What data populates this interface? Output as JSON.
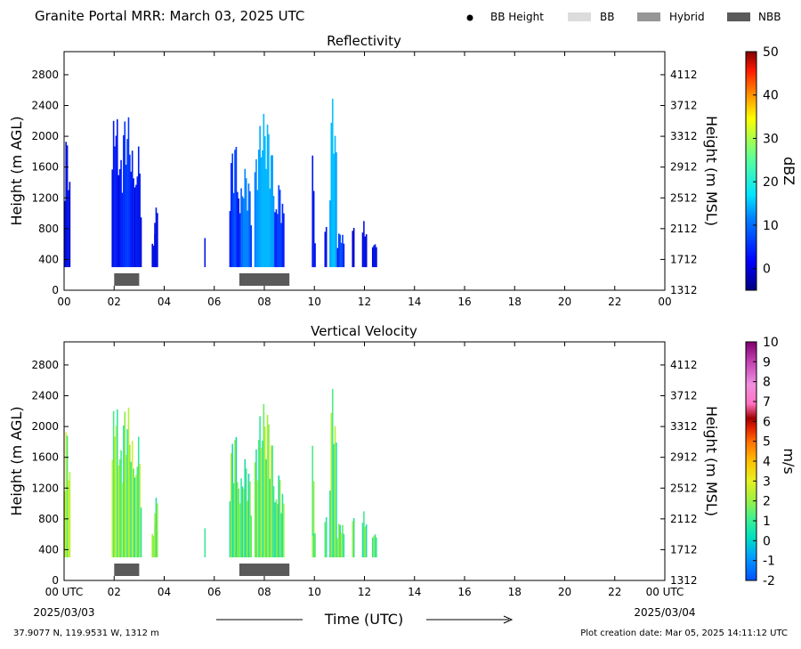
{
  "header": {
    "title": "Granite Portal MRR:  March 03, 2025 UTC",
    "legend": [
      {
        "label": "BB Height",
        "kind": "dot",
        "color": "#000000"
      },
      {
        "label": "BB",
        "kind": "box",
        "color": "#dcdcdc"
      },
      {
        "label": "Hybrid",
        "kind": "box",
        "color": "#969696"
      },
      {
        "label": "NBB",
        "kind": "box",
        "color": "#5a5a5a"
      }
    ]
  },
  "footer": {
    "coords": "37.9077 N, 119.9531 W, 1312 m",
    "creation": "Plot creation date: Mar 05, 2025 14:11:12 UTC",
    "start_date": "2025/03/03",
    "end_date": "2025/03/04",
    "time_label": "Time (UTC)"
  },
  "chart_data": [
    {
      "type": "heatmap",
      "title": "Reflectivity",
      "ylabel": "Height (m AGL)",
      "y2label": "Height (m MSL)",
      "x_ticks": [
        "00",
        "02",
        "04",
        "06",
        "08",
        "10",
        "12",
        "14",
        "16",
        "18",
        "20",
        "22",
        "00"
      ],
      "xlim": [
        0,
        24
      ],
      "ylim": [
        0,
        3100
      ],
      "y_ticks": [
        0,
        400,
        800,
        1200,
        1600,
        2000,
        2400,
        2800
      ],
      "y2_ticks": [
        "1312",
        "1712",
        "2112",
        "2512",
        "2912",
        "3312",
        "3712",
        "4112"
      ],
      "colorbar": {
        "label": "dBZ",
        "range": [
          -5,
          50
        ],
        "ticks": [
          0,
          10,
          20,
          30,
          40,
          50
        ]
      },
      "nbb_periods": [
        [
          2.0,
          3.0
        ],
        [
          7.0,
          9.0
        ]
      ],
      "echo_columns": [
        {
          "start": 0.0,
          "end": 0.25,
          "top": 2100,
          "intensity": 0.1
        },
        {
          "start": 1.9,
          "end": 2.2,
          "top": 2500,
          "intensity": 0.15
        },
        {
          "start": 2.2,
          "end": 2.8,
          "top": 2300,
          "intensity": 0.2
        },
        {
          "start": 2.8,
          "end": 3.1,
          "top": 1900,
          "intensity": 0.15
        },
        {
          "start": 3.5,
          "end": 3.7,
          "top": 800,
          "intensity": 0.1
        },
        {
          "start": 3.6,
          "end": 3.75,
          "top": 1400,
          "intensity": 0.1
        },
        {
          "start": 5.6,
          "end": 5.65,
          "top": 900,
          "intensity": 0.1
        },
        {
          "start": 6.6,
          "end": 7.0,
          "top": 2000,
          "intensity": 0.25
        },
        {
          "start": 7.0,
          "end": 7.5,
          "top": 1600,
          "intensity": 0.3
        },
        {
          "start": 7.6,
          "end": 8.4,
          "top": 2300,
          "intensity": 0.45
        },
        {
          "start": 8.4,
          "end": 8.8,
          "top": 1400,
          "intensity": 0.25
        },
        {
          "start": 9.9,
          "end": 10.0,
          "top": 2600,
          "intensity": 0.2
        },
        {
          "start": 9.9,
          "end": 10.05,
          "top": 800,
          "intensity": 0.2
        },
        {
          "start": 10.4,
          "end": 10.5,
          "top": 1300,
          "intensity": 0.2
        },
        {
          "start": 10.6,
          "end": 10.9,
          "top": 2600,
          "intensity": 0.45
        },
        {
          "start": 10.9,
          "end": 11.2,
          "top": 800,
          "intensity": 0.25
        },
        {
          "start": 11.5,
          "end": 11.6,
          "top": 1100,
          "intensity": 0.1
        },
        {
          "start": 11.9,
          "end": 12.1,
          "top": 1000,
          "intensity": 0.1
        },
        {
          "start": 12.3,
          "end": 12.5,
          "top": 700,
          "intensity": 0.1
        }
      ]
    },
    {
      "type": "heatmap",
      "title": "Vertical Velocity",
      "ylabel": "Height (m AGL)",
      "y2label": "Height (m MSL)",
      "x_ticks": [
        "00 UTC",
        "02",
        "04",
        "06",
        "08",
        "10",
        "12",
        "14",
        "16",
        "18",
        "20",
        "22",
        "00 UTC"
      ],
      "xlim": [
        0,
        24
      ],
      "ylim": [
        0,
        3100
      ],
      "y_ticks": [
        0,
        400,
        800,
        1200,
        1600,
        2000,
        2400,
        2800
      ],
      "y2_ticks": [
        "1312",
        "1712",
        "2112",
        "2512",
        "2912",
        "3312",
        "3712",
        "4112"
      ],
      "colorbar": {
        "label": "m/s",
        "range": [
          -2,
          10
        ],
        "ticks": [
          -2,
          -1,
          0,
          1,
          2,
          3,
          4,
          5,
          6,
          7,
          8,
          9,
          10
        ]
      },
      "nbb_periods": [
        [
          2.0,
          3.0
        ],
        [
          7.0,
          9.0
        ]
      ],
      "echo_columns": [
        {
          "start": 0.0,
          "end": 0.25,
          "top": 2100,
          "intensity": 0.7
        },
        {
          "start": 1.9,
          "end": 2.2,
          "top": 2500,
          "intensity": 0.65
        },
        {
          "start": 2.2,
          "end": 2.8,
          "top": 2300,
          "intensity": 0.6
        },
        {
          "start": 2.8,
          "end": 3.1,
          "top": 1900,
          "intensity": 0.55
        },
        {
          "start": 3.5,
          "end": 3.7,
          "top": 800,
          "intensity": 0.55
        },
        {
          "start": 3.6,
          "end": 3.75,
          "top": 1400,
          "intensity": 0.55
        },
        {
          "start": 5.6,
          "end": 5.65,
          "top": 900,
          "intensity": 0.6
        },
        {
          "start": 6.6,
          "end": 7.0,
          "top": 2000,
          "intensity": 0.45
        },
        {
          "start": 7.0,
          "end": 7.5,
          "top": 1600,
          "intensity": 0.45
        },
        {
          "start": 7.6,
          "end": 8.4,
          "top": 2300,
          "intensity": 0.55
        },
        {
          "start": 8.4,
          "end": 8.8,
          "top": 1400,
          "intensity": 0.45
        },
        {
          "start": 9.9,
          "end": 10.0,
          "top": 2600,
          "intensity": 0.5
        },
        {
          "start": 9.9,
          "end": 10.05,
          "top": 800,
          "intensity": 0.55
        },
        {
          "start": 10.4,
          "end": 10.5,
          "top": 1300,
          "intensity": 0.55
        },
        {
          "start": 10.6,
          "end": 10.9,
          "top": 2600,
          "intensity": 0.5
        },
        {
          "start": 10.9,
          "end": 11.2,
          "top": 800,
          "intensity": 0.55
        },
        {
          "start": 11.5,
          "end": 11.6,
          "top": 1100,
          "intensity": 0.55
        },
        {
          "start": 11.9,
          "end": 12.1,
          "top": 1000,
          "intensity": 0.5
        },
        {
          "start": 12.3,
          "end": 12.5,
          "top": 700,
          "intensity": 0.5
        }
      ]
    }
  ]
}
